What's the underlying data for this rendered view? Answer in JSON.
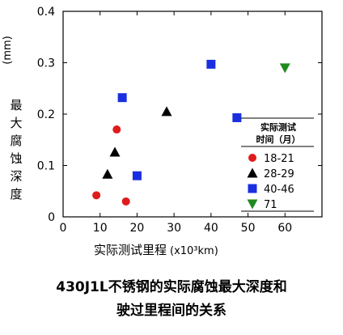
{
  "chart_data": {
    "type": "scatter",
    "ylabel_unit": "(mm)",
    "ylabel": "最大腐蚀深度",
    "xlabel": "实际测试里程",
    "xlabel_unit": "(x10³km)",
    "xlim": [
      0,
      70
    ],
    "ylim": [
      0,
      0.4
    ],
    "x_ticks": [
      0,
      10,
      20,
      30,
      40,
      50,
      60
    ],
    "y_ticks": [
      0,
      0.1,
      0.2,
      0.3,
      0.4
    ],
    "x_tick_labels": [
      "0",
      "10",
      "20",
      "30",
      "40",
      "50",
      "60"
    ],
    "y_tick_labels": [
      "0",
      "0.1",
      "0.2",
      "0.3",
      "0.4"
    ],
    "grid": false,
    "legend": {
      "title_lines": [
        "实际测试",
        "时间（月）"
      ],
      "placement": "bottom-right"
    },
    "series": [
      {
        "name": "18-21",
        "marker": "circle",
        "color": "#e01b1b",
        "points": [
          [
            9,
            0.042
          ],
          [
            14.5,
            0.17
          ],
          [
            17,
            0.03
          ]
        ]
      },
      {
        "name": "28-29",
        "marker": "triangle",
        "color": "#000000",
        "points": [
          [
            12,
            0.083
          ],
          [
            14,
            0.126
          ],
          [
            28,
            0.205
          ]
        ]
      },
      {
        "name": "40-46",
        "marker": "square",
        "color": "#1a2fe0",
        "points": [
          [
            16,
            0.232
          ],
          [
            20,
            0.08
          ],
          [
            40,
            0.297
          ],
          [
            47,
            0.193
          ]
        ]
      },
      {
        "name": "71",
        "marker": "triangle-down",
        "color": "#1f8a1f",
        "points": [
          [
            60,
            0.29
          ]
        ]
      }
    ]
  },
  "caption": {
    "line1": "430J1L不锈钢的实际腐蚀最大深度和",
    "line2": "驶过里程间的关系"
  }
}
